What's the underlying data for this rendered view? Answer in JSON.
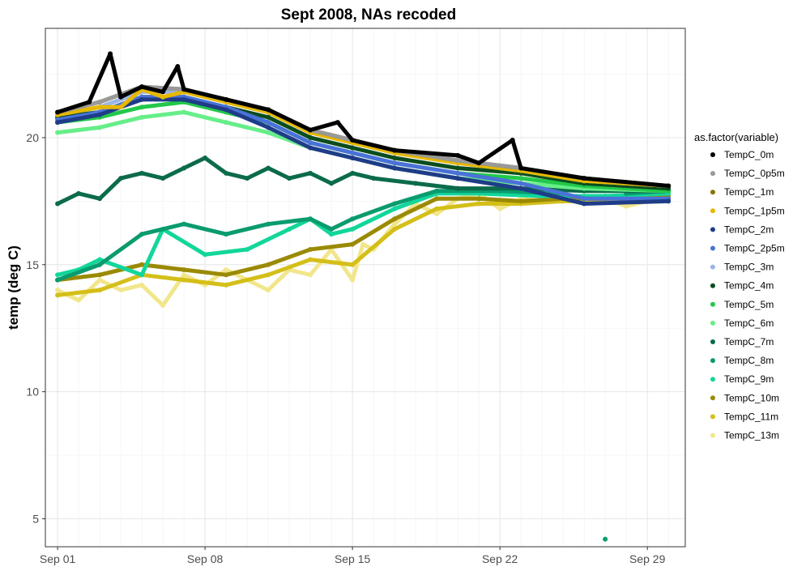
{
  "chart_data": {
    "type": "scatter",
    "title": "Sept 2008, NAs recoded",
    "xlabel": "",
    "ylabel": "temp (deg C)",
    "x_ticks": [
      "Sep 01",
      "Sep 08",
      "Sep 15",
      "Sep 22",
      "Sep 29"
    ],
    "x_range": [
      "2008-08-31 10:00",
      "2008-09-30 19:00"
    ],
    "ylim": [
      3.9,
      24.3
    ],
    "y_ticks": [
      5,
      10,
      15,
      20
    ],
    "grid": true,
    "legend": {
      "title": "as.factor(variable)",
      "position": "right",
      "entries": [
        {
          "name": "TempC_0m",
          "color": "#000000"
        },
        {
          "name": "TempC_0p5m",
          "color": "#999999"
        },
        {
          "name": "TempC_1m",
          "color": "#8b7300"
        },
        {
          "name": "TempC_1p5m",
          "color": "#e6b800"
        },
        {
          "name": "TempC_2m",
          "color": "#1f3c88"
        },
        {
          "name": "TempC_2p5m",
          "color": "#4a72d8"
        },
        {
          "name": "TempC_3m",
          "color": "#9bb5e6"
        },
        {
          "name": "TempC_4m",
          "color": "#0b4d1e"
        },
        {
          "name": "TempC_5m",
          "color": "#22c84a"
        },
        {
          "name": "TempC_6m",
          "color": "#66ee88"
        },
        {
          "name": "TempC_7m",
          "color": "#0b6b4a"
        },
        {
          "name": "TempC_8m",
          "color": "#0a9b6e"
        },
        {
          "name": "TempC_9m",
          "color": "#12d69a"
        },
        {
          "name": "TempC_10m",
          "color": "#9a8a00"
        },
        {
          "name": "TempC_11m",
          "color": "#d4bf1a"
        },
        {
          "name": "TempC_13m",
          "color": "#f2e68c"
        }
      ]
    },
    "series": [
      {
        "name": "TempC_13m",
        "values": [
          [
            1.0,
            14.0
          ],
          [
            2.0,
            13.6
          ],
          [
            3.0,
            14.4
          ],
          [
            4.0,
            14.0
          ],
          [
            5.0,
            14.2
          ],
          [
            6.0,
            13.4
          ],
          [
            7.0,
            14.6
          ],
          [
            8.0,
            14.2
          ],
          [
            9.0,
            14.8
          ],
          [
            10.0,
            14.4
          ],
          [
            11.0,
            14.0
          ],
          [
            12.0,
            14.8
          ],
          [
            13.0,
            14.6
          ],
          [
            14.0,
            15.6
          ],
          [
            15.0,
            14.4
          ],
          [
            15.5,
            15.8
          ],
          [
            16.0,
            15.6
          ],
          [
            17.0,
            16.6
          ],
          [
            18.0,
            17.4
          ],
          [
            19.0,
            17.0
          ],
          [
            20.0,
            17.6
          ],
          [
            21.0,
            17.8
          ],
          [
            22.0,
            17.2
          ],
          [
            23.0,
            17.6
          ],
          [
            24.0,
            17.5
          ],
          [
            25.0,
            17.6
          ],
          [
            26.0,
            17.4
          ],
          [
            27.0,
            17.6
          ],
          [
            28.0,
            17.3
          ],
          [
            29.0,
            17.5
          ],
          [
            30.0,
            17.6
          ]
        ]
      },
      {
        "name": "TempC_11m",
        "values": [
          [
            1.0,
            13.8
          ],
          [
            3.0,
            14.0
          ],
          [
            5.0,
            14.6
          ],
          [
            7.0,
            14.4
          ],
          [
            9.0,
            14.2
          ],
          [
            11.0,
            14.6
          ],
          [
            13.0,
            15.2
          ],
          [
            15.0,
            15.0
          ],
          [
            17.0,
            16.4
          ],
          [
            19.0,
            17.2
          ],
          [
            21.0,
            17.4
          ],
          [
            23.0,
            17.4
          ],
          [
            25.0,
            17.5
          ],
          [
            27.0,
            17.5
          ],
          [
            29.0,
            17.6
          ],
          [
            30.0,
            17.6
          ]
        ]
      },
      {
        "name": "TempC_10m",
        "values": [
          [
            1.0,
            14.4
          ],
          [
            3.0,
            14.6
          ],
          [
            5.0,
            15.0
          ],
          [
            7.0,
            14.8
          ],
          [
            9.0,
            14.6
          ],
          [
            11.0,
            15.0
          ],
          [
            13.0,
            15.6
          ],
          [
            15.0,
            15.8
          ],
          [
            17.0,
            16.8
          ],
          [
            19.0,
            17.6
          ],
          [
            21.0,
            17.6
          ],
          [
            23.0,
            17.5
          ],
          [
            25.0,
            17.6
          ],
          [
            27.0,
            17.6
          ],
          [
            29.0,
            17.7
          ],
          [
            30.0,
            17.7
          ]
        ]
      },
      {
        "name": "TempC_9m",
        "values": [
          [
            1.0,
            14.6
          ],
          [
            2.0,
            14.8
          ],
          [
            3.0,
            15.2
          ],
          [
            5.0,
            14.6
          ],
          [
            6.0,
            16.4
          ],
          [
            8.0,
            15.4
          ],
          [
            10.0,
            15.6
          ],
          [
            12.0,
            16.4
          ],
          [
            13.0,
            16.8
          ],
          [
            14.0,
            16.2
          ],
          [
            15.0,
            16.4
          ],
          [
            17.0,
            17.2
          ],
          [
            19.0,
            17.8
          ],
          [
            21.0,
            17.8
          ],
          [
            24.0,
            17.7
          ],
          [
            27.0,
            17.7
          ],
          [
            30.0,
            17.8
          ]
        ]
      },
      {
        "name": "TempC_8m",
        "values": [
          [
            1.0,
            14.4
          ],
          [
            3.0,
            15.0
          ],
          [
            5.0,
            16.2
          ],
          [
            7.0,
            16.6
          ],
          [
            9.0,
            16.2
          ],
          [
            11.0,
            16.6
          ],
          [
            13.0,
            16.8
          ],
          [
            14.0,
            16.4
          ],
          [
            15.0,
            16.8
          ],
          [
            17.0,
            17.4
          ],
          [
            19.0,
            17.9
          ],
          [
            22.0,
            17.9
          ],
          [
            25.0,
            17.8
          ],
          [
            27.0,
            4.2
          ],
          [
            28.0,
            17.8
          ],
          [
            30.0,
            17.9
          ]
        ]
      },
      {
        "name": "TempC_7m",
        "values": [
          [
            1.0,
            17.4
          ],
          [
            2.0,
            17.8
          ],
          [
            3.0,
            17.6
          ],
          [
            4.0,
            18.4
          ],
          [
            5.0,
            18.6
          ],
          [
            6.0,
            18.4
          ],
          [
            7.0,
            18.8
          ],
          [
            8.0,
            19.2
          ],
          [
            9.0,
            18.6
          ],
          [
            10.0,
            18.4
          ],
          [
            11.0,
            18.8
          ],
          [
            12.0,
            18.4
          ],
          [
            13.0,
            18.6
          ],
          [
            14.0,
            18.2
          ],
          [
            15.0,
            18.6
          ],
          [
            16.0,
            18.4
          ],
          [
            18.0,
            18.2
          ],
          [
            20.0,
            18.0
          ],
          [
            23.0,
            18.0
          ],
          [
            26.0,
            17.9
          ],
          [
            30.0,
            17.9
          ]
        ]
      },
      {
        "name": "TempC_6m",
        "values": [
          [
            1.0,
            20.2
          ],
          [
            3.0,
            20.4
          ],
          [
            5.0,
            20.8
          ],
          [
            7.0,
            21.0
          ],
          [
            9.0,
            20.6
          ],
          [
            11.0,
            20.2
          ],
          [
            13.0,
            19.6
          ],
          [
            15.0,
            19.2
          ],
          [
            17.0,
            18.8
          ],
          [
            20.0,
            18.4
          ],
          [
            23.0,
            18.2
          ],
          [
            26.0,
            18.0
          ],
          [
            30.0,
            17.9
          ]
        ]
      },
      {
        "name": "TempC_5m",
        "values": [
          [
            1.0,
            20.6
          ],
          [
            3.0,
            20.8
          ],
          [
            5.0,
            21.2
          ],
          [
            7.0,
            21.4
          ],
          [
            9.0,
            21.0
          ],
          [
            11.0,
            20.6
          ],
          [
            13.0,
            19.8
          ],
          [
            15.0,
            19.4
          ],
          [
            17.0,
            19.0
          ],
          [
            20.0,
            18.6
          ],
          [
            23.0,
            18.4
          ],
          [
            26.0,
            18.1
          ],
          [
            30.0,
            17.9
          ]
        ]
      },
      {
        "name": "TempC_4m",
        "values": [
          [
            1.0,
            20.8
          ],
          [
            3.0,
            21.0
          ],
          [
            5.0,
            21.6
          ],
          [
            7.0,
            21.6
          ],
          [
            9.0,
            21.2
          ],
          [
            11.0,
            20.8
          ],
          [
            13.0,
            20.0
          ],
          [
            15.0,
            19.6
          ],
          [
            17.0,
            19.2
          ],
          [
            20.0,
            18.8
          ],
          [
            23.0,
            18.6
          ],
          [
            26.0,
            18.2
          ],
          [
            30.0,
            18.0
          ]
        ]
      },
      {
        "name": "TempC_3m",
        "values": [
          [
            1.0,
            20.9
          ],
          [
            3.0,
            21.2
          ],
          [
            5.0,
            21.8
          ],
          [
            7.0,
            21.8
          ],
          [
            9.0,
            21.4
          ],
          [
            11.0,
            21.0
          ],
          [
            13.0,
            20.2
          ],
          [
            15.0,
            19.8
          ],
          [
            17.0,
            19.4
          ],
          [
            20.0,
            19.0
          ],
          [
            23.0,
            18.7
          ],
          [
            26.0,
            18.3
          ],
          [
            30.0,
            18.1
          ]
        ]
      },
      {
        "name": "TempC_2p5m",
        "values": [
          [
            1.0,
            20.7
          ],
          [
            3.0,
            21.0
          ],
          [
            5.0,
            21.6
          ],
          [
            7.0,
            21.6
          ],
          [
            9.0,
            21.2
          ],
          [
            11.0,
            20.6
          ],
          [
            13.0,
            19.8
          ],
          [
            15.0,
            19.4
          ],
          [
            17.0,
            19.0
          ],
          [
            20.0,
            18.6
          ],
          [
            23.0,
            18.2
          ],
          [
            26.0,
            17.6
          ],
          [
            30.0,
            17.6
          ]
        ]
      },
      {
        "name": "TempC_2m",
        "values": [
          [
            1.0,
            20.6
          ],
          [
            3.0,
            20.9
          ],
          [
            5.0,
            21.5
          ],
          [
            7.0,
            21.5
          ],
          [
            9.0,
            21.1
          ],
          [
            11.0,
            20.4
          ],
          [
            13.0,
            19.6
          ],
          [
            15.0,
            19.2
          ],
          [
            17.0,
            18.8
          ],
          [
            20.0,
            18.4
          ],
          [
            23.0,
            18.0
          ],
          [
            26.0,
            17.4
          ],
          [
            30.0,
            17.5
          ]
        ]
      },
      {
        "name": "TempC_1p5m",
        "values": [
          [
            1.0,
            20.9
          ],
          [
            3.0,
            21.2
          ],
          [
            4.0,
            21.2
          ],
          [
            5.0,
            21.9
          ],
          [
            6.0,
            21.6
          ],
          [
            7.0,
            21.8
          ],
          [
            9.0,
            21.4
          ],
          [
            11.0,
            21.0
          ],
          [
            13.0,
            20.2
          ],
          [
            15.0,
            19.8
          ],
          [
            17.0,
            19.4
          ],
          [
            20.0,
            19.0
          ],
          [
            23.0,
            18.7
          ],
          [
            26.0,
            18.3
          ],
          [
            30.0,
            18.1
          ]
        ]
      },
      {
        "name": "TempC_1m",
        "values": [
          [
            1.0,
            21.0
          ],
          [
            3.0,
            21.4
          ],
          [
            5.0,
            22.0
          ],
          [
            7.0,
            21.9
          ],
          [
            9.0,
            21.5
          ],
          [
            11.0,
            21.1
          ],
          [
            13.0,
            20.3
          ],
          [
            15.0,
            19.9
          ],
          [
            17.0,
            19.5
          ],
          [
            20.0,
            19.1
          ],
          [
            23.0,
            18.8
          ],
          [
            26.0,
            18.4
          ],
          [
            30.0,
            18.1
          ]
        ]
      },
      {
        "name": "TempC_0p5m",
        "values": [
          [
            1.0,
            21.0
          ],
          [
            3.0,
            21.4
          ],
          [
            5.0,
            22.0
          ],
          [
            7.0,
            21.9
          ],
          [
            9.0,
            21.5
          ],
          [
            11.0,
            21.1
          ],
          [
            13.0,
            20.3
          ],
          [
            15.0,
            19.9
          ],
          [
            17.0,
            19.5
          ],
          [
            20.0,
            19.1
          ],
          [
            23.0,
            18.8
          ],
          [
            26.0,
            18.4
          ],
          [
            30.0,
            18.1
          ]
        ]
      },
      {
        "name": "TempC_0m",
        "values": [
          [
            1.0,
            21.0
          ],
          [
            2.5,
            21.4
          ],
          [
            3.5,
            23.3
          ],
          [
            4.0,
            21.6
          ],
          [
            5.0,
            22.0
          ],
          [
            6.0,
            21.8
          ],
          [
            6.7,
            22.8
          ],
          [
            7.0,
            21.9
          ],
          [
            9.0,
            21.5
          ],
          [
            11.0,
            21.1
          ],
          [
            13.0,
            20.3
          ],
          [
            14.3,
            20.6
          ],
          [
            15.0,
            19.9
          ],
          [
            17.0,
            19.5
          ],
          [
            20.0,
            19.3
          ],
          [
            21.0,
            19.0
          ],
          [
            22.6,
            19.9
          ],
          [
            23.0,
            18.8
          ],
          [
            26.0,
            18.4
          ],
          [
            30.0,
            18.1
          ]
        ]
      }
    ]
  }
}
